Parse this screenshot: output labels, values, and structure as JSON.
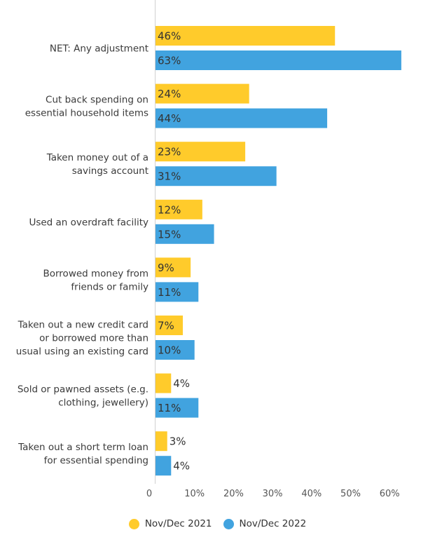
{
  "chart_data": {
    "type": "bar",
    "orientation": "horizontal",
    "categories": [
      [
        "NET: Any adjustment"
      ],
      [
        "Cut back spending on",
        "essential household items"
      ],
      [
        "Taken money out of a",
        "savings account"
      ],
      [
        "Used an overdraft facility"
      ],
      [
        "Borrowed money from",
        "friends or family"
      ],
      [
        "Taken out a new credit card",
        "or borrowed more than",
        "usual using an existing card"
      ],
      [
        "Sold or pawned assets (e.g.",
        "clothing, jewellery)"
      ],
      [
        "Taken out a short term loan",
        "for essential spending"
      ]
    ],
    "series": [
      {
        "name": "Nov/Dec 2021",
        "color": "#FFCB2B",
        "values": [
          46,
          24,
          23,
          12,
          9,
          7,
          4,
          3
        ],
        "labels": [
          "46%",
          "24%",
          "23%",
          "12%",
          "9%",
          "7%",
          "4%",
          "3%"
        ]
      },
      {
        "name": "Nov/Dec 2022",
        "color": "#41A3DF",
        "values": [
          63,
          44,
          31,
          15,
          11,
          10,
          11,
          4
        ],
        "labels": [
          "63%",
          "44%",
          "31%",
          "15%",
          "11%",
          "10%",
          "11%",
          "4%"
        ]
      }
    ],
    "xlim": [
      0,
      65
    ],
    "xticks": [
      0,
      10,
      20,
      30,
      40,
      50,
      60
    ],
    "xtick_labels": [
      "0",
      "10%",
      "20%",
      "30%",
      "40%",
      "50%",
      "60%"
    ],
    "grid": false,
    "legend_position": "bottom"
  }
}
